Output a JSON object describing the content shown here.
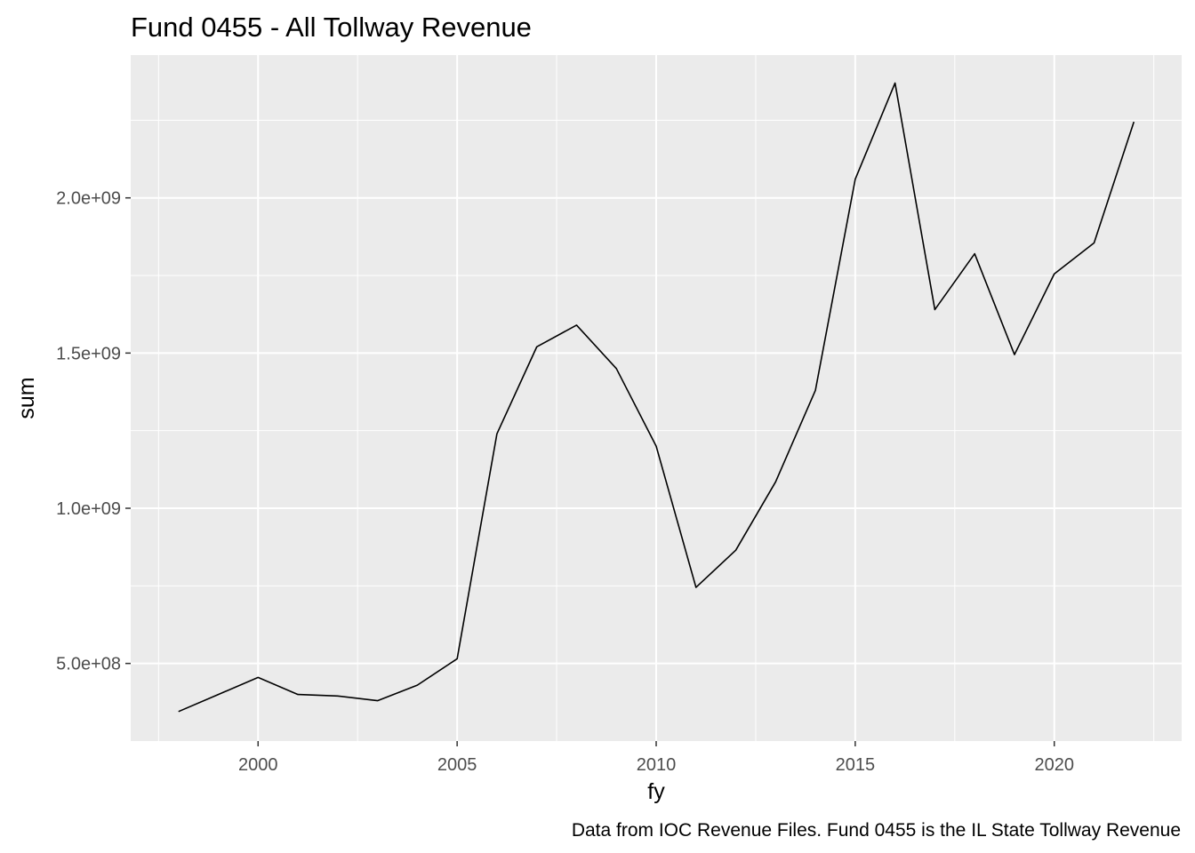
{
  "chart_data": {
    "type": "line",
    "title": "Fund 0455 - All Tollway Revenue",
    "xlabel": "fy",
    "ylabel": "sum",
    "caption": "Data from IOC Revenue Files. Fund 0455 is the IL State Tollway Revenue",
    "xlim": [
      1996.8,
      2023.2
    ],
    "ylim": [
      250000000,
      2460000000
    ],
    "x_ticks": [
      2000,
      2005,
      2010,
      2015,
      2020
    ],
    "x_minor_ticks": [
      1997.5,
      2002.5,
      2007.5,
      2012.5,
      2017.5,
      2022.5
    ],
    "x_tick_labels": [
      "2000",
      "2005",
      "2010",
      "2015",
      "2020"
    ],
    "y_ticks": [
      500000000,
      1000000000,
      1500000000,
      2000000000
    ],
    "y_minor_ticks": [
      750000000,
      1250000000,
      1750000000,
      2250000000
    ],
    "y_tick_labels": [
      "5.0e+08",
      "1.0e+09",
      "1.5e+09",
      "2.0e+09"
    ],
    "grid": true,
    "panel_background": "#ebebeb",
    "grid_color": "#ffffff",
    "line_color": "#000000",
    "series": [
      {
        "x": [
          1998,
          1999,
          2000,
          2001,
          2002,
          2003,
          2004,
          2005,
          2006,
          2007,
          2008,
          2009,
          2010,
          2011,
          2012,
          2013,
          2014,
          2015,
          2016,
          2017,
          2018,
          2019,
          2020,
          2021,
          2022
        ],
        "values": [
          345000000,
          400000000,
          455000000,
          400000000,
          395000000,
          380000000,
          430000000,
          515000000,
          1240000000,
          1520000000,
          1590000000,
          1450000000,
          1200000000,
          745000000,
          865000000,
          1085000000,
          1380000000,
          2060000000,
          2370000000,
          1640000000,
          1820000000,
          1495000000,
          1755000000,
          1855000000,
          2245000000
        ]
      }
    ]
  }
}
